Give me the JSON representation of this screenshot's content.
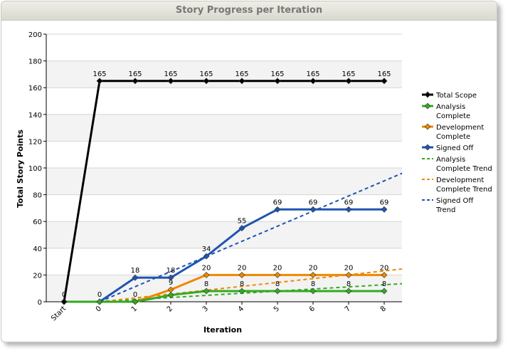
{
  "header": {
    "title": "Story Progress per Iteration"
  },
  "chart_data": {
    "type": "line",
    "title": "Story Progress per Iteration",
    "xlabel": "Iteration",
    "ylabel": "Total Story Points",
    "categories": [
      "Start",
      "0",
      "1",
      "2",
      "3",
      "4",
      "5",
      "6",
      "7",
      "8"
    ],
    "ylim": [
      0,
      200
    ],
    "yticks": [
      0,
      20,
      40,
      60,
      80,
      100,
      120,
      140,
      160,
      180,
      200
    ],
    "grid": "alternating horizontal bands",
    "legend": "right",
    "series": [
      {
        "name": "Total Scope",
        "color": "#000000",
        "marker": "diamond",
        "values": [
          0,
          165,
          165,
          165,
          165,
          165,
          165,
          165,
          165,
          165
        ],
        "labels": [
          "0",
          "165",
          "165",
          "165",
          "165",
          "165",
          "165",
          "165",
          "165",
          "165"
        ]
      },
      {
        "name": "Analysis Complete",
        "color": "#33aa22",
        "marker": "diamond",
        "values": [
          0,
          0,
          0,
          5,
          8,
          8,
          8,
          8,
          8,
          8
        ],
        "labels": [
          "",
          "",
          "",
          "",
          "8",
          "8",
          "8",
          "8",
          "8",
          "8"
        ]
      },
      {
        "name": "Development Complete",
        "color": "#ee8800",
        "marker": "diamond",
        "values": [
          0,
          0,
          0,
          9,
          20,
          20,
          20,
          20,
          20,
          20
        ],
        "labels": [
          "",
          "",
          "0",
          "9",
          "20",
          "20",
          "20",
          "20",
          "20",
          "20"
        ]
      },
      {
        "name": "Signed Off",
        "color": "#1f55b0",
        "marker": "diamond",
        "values": [
          0,
          0,
          18,
          18,
          34,
          55,
          69,
          69,
          69,
          69
        ],
        "labels": [
          "",
          "0",
          "18",
          "18",
          "34",
          "55",
          "69",
          "69",
          "69",
          "69"
        ]
      },
      {
        "name": "Analysis Complete Trend",
        "color": "#33aa22",
        "dashed": true,
        "trend": [
          [
            1,
            0
          ],
          [
            9.5,
            13.5
          ]
        ]
      },
      {
        "name": "Development Complete Trend",
        "color": "#ee8800",
        "dashed": true,
        "trend": [
          [
            1,
            0
          ],
          [
            9.5,
            24.5
          ]
        ]
      },
      {
        "name": "Signed Off Trend",
        "color": "#1f55b0",
        "dashed": true,
        "trend": [
          [
            1,
            0
          ],
          [
            9.5,
            96
          ]
        ]
      }
    ],
    "legend_items": [
      {
        "lines": [
          "Total Scope"
        ],
        "series": 0,
        "style": "marker"
      },
      {
        "lines": [
          "Analysis",
          "Complete"
        ],
        "series": 1,
        "style": "marker"
      },
      {
        "lines": [
          "Development",
          "Complete"
        ],
        "series": 2,
        "style": "marker"
      },
      {
        "lines": [
          "Signed Off"
        ],
        "series": 3,
        "style": "marker"
      },
      {
        "lines": [
          "Analysis",
          "Complete Trend"
        ],
        "series": 4,
        "style": "dashed"
      },
      {
        "lines": [
          "Development",
          "Complete Trend"
        ],
        "series": 5,
        "style": "dashed"
      },
      {
        "lines": [
          "Signed Off",
          "Trend"
        ],
        "series": 6,
        "style": "dashed"
      }
    ]
  }
}
